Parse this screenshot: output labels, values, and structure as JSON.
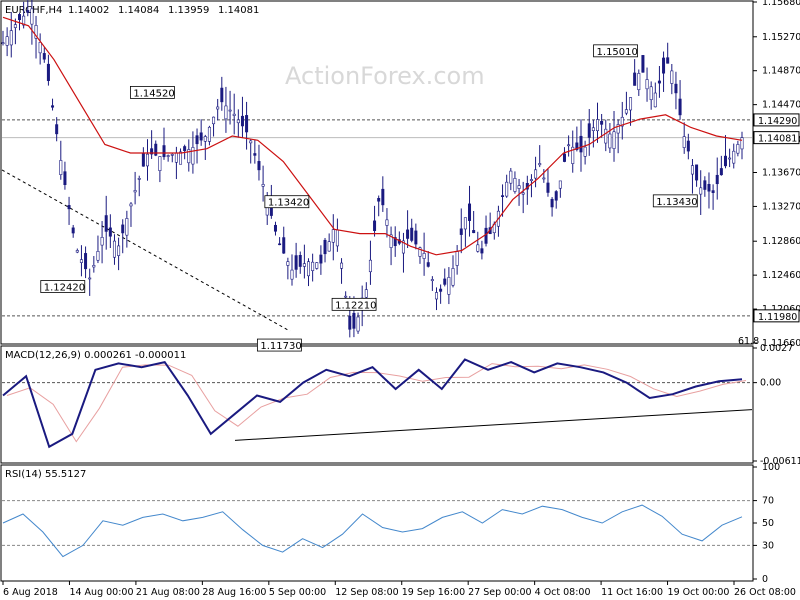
{
  "chart_data": [
    {
      "type": "candlestick",
      "symbol": "EURCHF,H4",
      "ohlc": {
        "open": "1.14002",
        "high": "1.14084",
        "low": "1.13959",
        "close": "1.14081"
      },
      "watermark": "ActionForex.com",
      "ylim": [
        1.1166,
        1.1568
      ],
      "yticks": [
        "1.15680",
        "1.15270",
        "1.14870",
        "1.14470",
        "1.14060",
        "1.13670",
        "1.13270",
        "1.12860",
        "1.12460",
        "1.12060",
        "1.11660"
      ],
      "y_tick_values": [
        1.1568,
        1.1527,
        1.1487,
        1.1447,
        1.1406,
        1.1367,
        1.1327,
        1.1286,
        1.1246,
        1.1206,
        1.1166
      ],
      "price_labels": [
        {
          "text": "1.14290",
          "value": 1.1429
        },
        {
          "text": "1.14081",
          "value": 1.14081
        },
        {
          "text": "1.11980",
          "value": 1.1198
        }
      ],
      "horizontal_lines": [
        1.1429,
        1.14081,
        1.1198
      ],
      "fib_label": "61.8",
      "annotations": [
        {
          "text": "1.12420",
          "x": 0.08,
          "value": 1.1242
        },
        {
          "text": "1.14520",
          "x": 0.2,
          "value": 1.1452
        },
        {
          "text": "1.11730",
          "x": 0.37,
          "value": 1.1173
        },
        {
          "text": "1.13420",
          "x": 0.38,
          "value": 1.1342
        },
        {
          "text": "1.12210",
          "x": 0.47,
          "value": 1.1221
        },
        {
          "text": "1.15010",
          "x": 0.82,
          "value": 1.1501
        },
        {
          "text": "1.13430",
          "x": 0.9,
          "value": 1.1343
        }
      ],
      "close_series": [
        1.152,
        1.1545,
        1.156,
        1.149,
        1.138,
        1.128,
        1.1242,
        1.13,
        1.128,
        1.134,
        1.139,
        1.1385,
        1.139,
        1.1395,
        1.141,
        1.1452,
        1.1435,
        1.141,
        1.135,
        1.1285,
        1.125,
        1.1262,
        1.126,
        1.131,
        1.1173,
        1.122,
        1.1342,
        1.128,
        1.129,
        1.1275,
        1.1221,
        1.125,
        1.132,
        1.127,
        1.131,
        1.137,
        1.134,
        1.138,
        1.132,
        1.14,
        1.139,
        1.143,
        1.141,
        1.144,
        1.149,
        1.146,
        1.1501,
        1.141,
        1.135,
        1.1343,
        1.138,
        1.14081
      ],
      "ma_series": [
        1.155,
        1.154,
        1.15,
        1.145,
        1.14,
        1.139,
        1.139,
        1.139,
        1.1395,
        1.141,
        1.1405,
        1.138,
        1.134,
        1.13,
        1.1295,
        1.1295,
        1.128,
        1.127,
        1.1275,
        1.1295,
        1.1335,
        1.136,
        1.139,
        1.14,
        1.142,
        1.143,
        1.1435,
        1.142,
        1.141,
        1.1405
      ],
      "macd": {
        "label": "MACD(12,26,9)  0.000261  -0.000011",
        "ylim": [
          -0.00611,
          0.0027
        ],
        "yticks": [
          "0.0027",
          "0.00",
          "-0.00611"
        ],
        "y_tick_values": [
          0.0027,
          0.0,
          -0.00611
        ],
        "series": [
          -0.001,
          0.0005,
          -0.005,
          -0.004,
          0.001,
          0.0015,
          0.0012,
          0.0016,
          -0.001,
          -0.004,
          -0.0025,
          -0.001,
          -0.0015,
          0.0,
          0.001,
          0.0005,
          0.0012,
          -0.0005,
          0.001,
          -0.0005,
          0.0018,
          0.001,
          0.0016,
          0.0008,
          0.0015,
          0.0012,
          0.0008,
          0.0,
          -0.0012,
          -0.0009,
          -0.0003,
          0.0001,
          0.000261
        ]
      },
      "rsi": {
        "label": "RSI(14)  55.5127",
        "ylim": [
          0,
          100
        ],
        "yticks": [
          "100",
          "70",
          "50",
          "30",
          "0"
        ],
        "y_tick_values": [
          100,
          70,
          50,
          30,
          0
        ],
        "levels": [
          70,
          30
        ],
        "series": [
          50,
          58,
          42,
          20,
          30,
          52,
          48,
          55,
          58,
          52,
          55,
          60,
          44,
          30,
          24,
          36,
          28,
          40,
          58,
          46,
          42,
          45,
          55,
          60,
          50,
          62,
          58,
          65,
          62,
          55,
          50,
          60,
          66,
          56,
          40,
          34,
          48,
          55.5127
        ]
      },
      "x_labels": [
        "6 Aug 2018",
        "14 Aug 00:00",
        "21 Aug 08:00",
        "28 Aug 16:00",
        "5 Sep 00:00",
        "12 Sep 08:00",
        "19 Sep 16:00",
        "27 Sep 00:00",
        "4 Oct 08:00",
        "11 Oct 16:00",
        "19 Oct 00:00",
        "26 Oct 08:00"
      ],
      "colors": {
        "candle": "#1a1a80",
        "ma": "#cc1111",
        "macd": "#1a1a80",
        "signal": "#e8a0a0",
        "rsi": "#4488cc",
        "grid": "#cccccc",
        "trendline": "#000000"
      }
    }
  ]
}
